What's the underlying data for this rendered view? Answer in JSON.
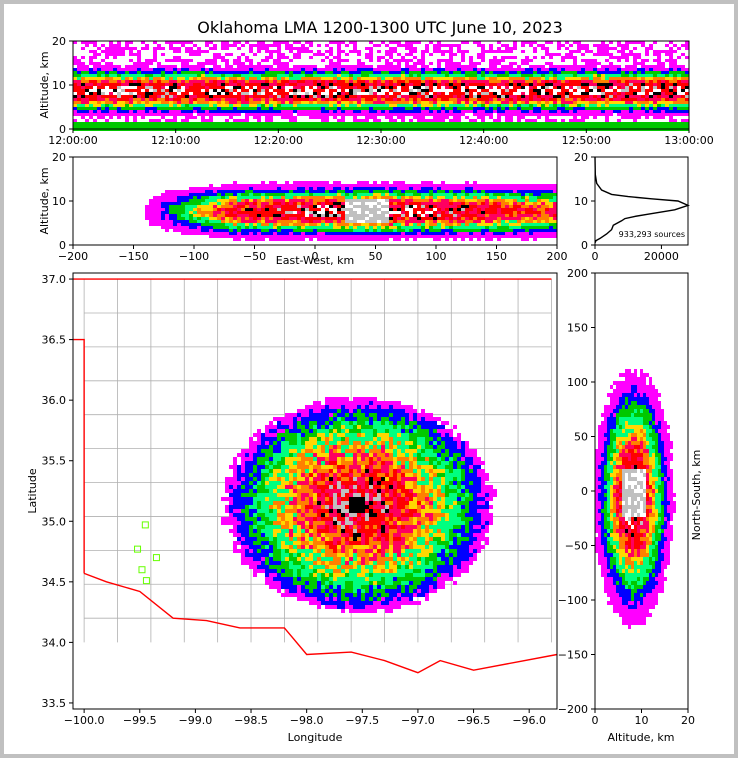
{
  "title": "Oklahoma LMA 1200-1300 UTC June 10, 2023",
  "colors": {
    "scale": [
      "#ffffff",
      "#c0c0c0",
      "#000000",
      "#ff0000",
      "#ff0060",
      "#ff8000",
      "#ffd700",
      "#00ff80",
      "#00c800",
      "#0000ff",
      "#ff00ff"
    ],
    "state_border": "#ff0000",
    "county_lines": "#b0b0b0",
    "station": "#66ff00"
  },
  "chart_data": [
    {
      "id": "time_height",
      "type": "heatmap",
      "ylabel": "Altitude, km",
      "xlabel": "",
      "xticks": [
        "12:00:00",
        "12:10:00",
        "12:20:00",
        "12:30:00",
        "12:40:00",
        "12:50:00",
        "13:00:00"
      ],
      "yticks": [
        "0",
        "10",
        "20"
      ],
      "xlim": [
        "12:00:00",
        "13:00:00"
      ],
      "ylim": [
        0,
        20
      ]
    },
    {
      "id": "ew_height",
      "type": "heatmap",
      "xlabel": "East-West, km",
      "ylabel": "Altitude, km",
      "xticks": [
        "−200",
        "−150",
        "−100",
        "−50",
        "0",
        "50",
        "100",
        "150",
        "200"
      ],
      "yticks": [
        "0",
        "10",
        "20"
      ],
      "xlim": [
        -200,
        200
      ],
      "ylim": [
        0,
        20
      ]
    },
    {
      "id": "altitude_histogram",
      "type": "line",
      "xticks": [
        "0",
        "20000"
      ],
      "yticks": [
        "0",
        "10",
        "20"
      ],
      "xlim": [
        0,
        28000
      ],
      "ylim": [
        0,
        20
      ],
      "annotation": "933,293 sources",
      "series": [
        {
          "x": [
            0,
            300,
            1500,
            2500,
            3500,
            5000,
            5500,
            8000,
            9000,
            12000,
            16000,
            24000,
            28000,
            25000,
            17000,
            10000,
            5000,
            2000,
            500,
            100,
            0
          ],
          "y": [
            0.5,
            1.0,
            1.5,
            2.0,
            2.5,
            3.5,
            4.5,
            5.5,
            6.0,
            6.5,
            7.0,
            8.0,
            9.0,
            10.0,
            10.5,
            11.0,
            11.5,
            12.5,
            14.0,
            16.0,
            20.0
          ]
        }
      ]
    },
    {
      "id": "plan_view",
      "type": "heatmap",
      "xlabel": "Longitude",
      "ylabel": "Latitude",
      "xticks": [
        "−100.0",
        "−99.5",
        "−99.0",
        "−98.5",
        "−98.0",
        "−97.5",
        "−97.0",
        "−96.5",
        "−96.0"
      ],
      "yticks": [
        "33.5",
        "34.0",
        "34.5",
        "35.0",
        "35.5",
        "36.0",
        "36.5",
        "37.0"
      ],
      "xlim": [
        -100.1,
        -95.75
      ],
      "ylim": [
        33.45,
        37.05
      ],
      "stations": [
        [
          -99.45,
          34.97
        ],
        [
          -99.52,
          34.77
        ],
        [
          -99.48,
          34.6
        ],
        [
          -99.44,
          34.51
        ],
        [
          -99.35,
          34.7
        ]
      ]
    },
    {
      "id": "ns_height",
      "type": "heatmap",
      "xlabel": "Altitude, km",
      "ylabel": "North-South, km",
      "xticks": [
        "0",
        "10",
        "20"
      ],
      "yticks": [
        "−200",
        "−150",
        "−100",
        "−50",
        "0",
        "50",
        "100",
        "150",
        "200"
      ],
      "xlim": [
        0,
        20
      ],
      "ylim": [
        -200,
        200
      ]
    }
  ]
}
